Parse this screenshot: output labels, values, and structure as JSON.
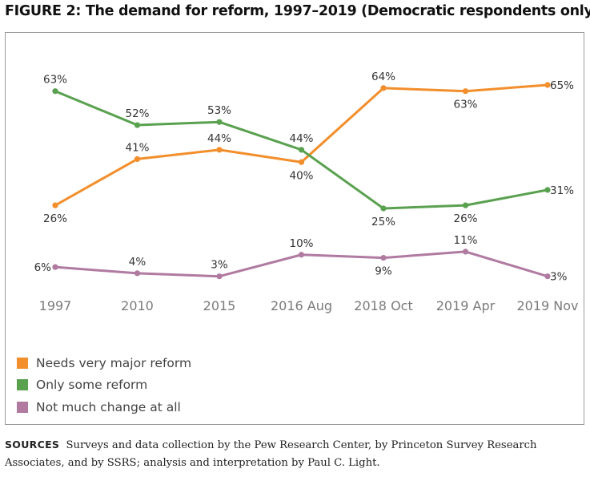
{
  "title": "FIGURE 2: The demand for reform, 1997–2019 (Democratic respondents only)",
  "sources": {
    "label": "SOURCES",
    "text": "Surveys and data collection by the Pew Research Center, by Princeton Survey Research Associates, and by SSRS; analysis and interpretation by Paul C. Light."
  },
  "chart_data": {
    "type": "line",
    "title": "FIGURE 2: The demand for reform, 1997–2019 (Democratic respondents only)",
    "xlabel": "",
    "ylabel": "",
    "ylim": [
      0,
      70
    ],
    "grid": false,
    "legend_position": "bottom-left",
    "categories": [
      "1997",
      "2010",
      "2015",
      "2016 Aug",
      "2018 Oct",
      "2019 Apr",
      "2019 Nov"
    ],
    "series": [
      {
        "name": "Needs very major reform",
        "color": "#f28e2b",
        "values": [
          26,
          41,
          44,
          40,
          64,
          63,
          65
        ],
        "labels": [
          "26%",
          "41%",
          "44%",
          "40%",
          "64%",
          "63%",
          "65%"
        ],
        "label_positions": [
          "below",
          "above",
          "above",
          "below",
          "above",
          "below",
          "right"
        ]
      },
      {
        "name": "Only some reform",
        "color": "#59a14f",
        "values": [
          63,
          52,
          53,
          44,
          25,
          26,
          31
        ],
        "labels": [
          "63%",
          "52%",
          "53%",
          "44%",
          "25%",
          "26%",
          "31%"
        ],
        "label_positions": [
          "above",
          "above",
          "above",
          "above",
          "below",
          "below",
          "right"
        ]
      },
      {
        "name": "Not much change at all",
        "color": "#b07aa1",
        "values": [
          6,
          4,
          3,
          10,
          9,
          11,
          3
        ],
        "labels": [
          "6%",
          "4%",
          "3%",
          "10%",
          "9%",
          "11%",
          "3%"
        ],
        "label_positions": [
          "left",
          "above",
          "above",
          "above",
          "below",
          "above",
          "right"
        ]
      }
    ]
  }
}
